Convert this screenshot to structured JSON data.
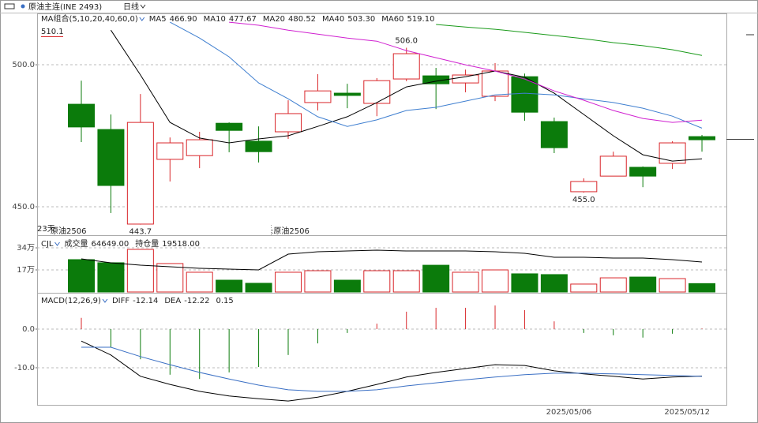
{
  "header": {
    "symbol": "原油主连(INE 2493)",
    "period": "日线"
  },
  "chart_data": [
    {
      "type": "candlestick",
      "legend_title": "MA组合(5,10,20,40,60,0)",
      "categories": [
        null,
        null,
        null,
        null,
        null,
        null,
        null,
        null,
        null,
        null,
        null,
        null,
        null,
        null,
        null,
        null,
        null,
        "2025/05/06",
        null,
        null,
        null,
        "2025/05/12"
      ],
      "open": [
        486.1,
        477.2,
        443.9,
        466.7,
        468,
        479.4,
        473.1,
        476.4,
        486.7,
        490,
        486.4,
        495,
        496.1,
        493.6,
        488.9,
        495.8,
        480,
        455.3,
        460.8,
        463.9,
        465.3,
        474.7
      ],
      "high": [
        494.4,
        482.5,
        489.7,
        474.4,
        476.4,
        479.7,
        478.3,
        487.5,
        496.7,
        493.3,
        495.3,
        506,
        498.9,
        498.3,
        500.6,
        496.9,
        481.4,
        460,
        469.4,
        464.2,
        473.1,
        475.3
      ],
      "low": [
        472.8,
        447.8,
        443.7,
        458.9,
        463.6,
        469.2,
        465.6,
        473.9,
        483.9,
        484.7,
        481.9,
        494.2,
        484.4,
        490.3,
        487.2,
        480.3,
        468.9,
        455,
        460.8,
        456.9,
        463.3,
        469.4
      ],
      "close": [
        478.1,
        457.5,
        479.7,
        472.5,
        473.6,
        476.9,
        469.4,
        482.8,
        490.8,
        489.2,
        494.4,
        503.9,
        493.3,
        496.4,
        497.8,
        483.3,
        470.8,
        458.9,
        467.8,
        460.8,
        472.5,
        473.6
      ],
      "up_color": "#d9262a",
      "down_color": "#0b7b0b",
      "ylim": [
        440,
        517.8
      ],
      "yticks": [
        {
          "value": 450,
          "label": "450.0"
        },
        {
          "value": 500,
          "label": "500.0"
        }
      ],
      "grid": true,
      "series": [
        {
          "name": "MA5",
          "value_label": "466.90",
          "color": "#000000",
          "values": [
            null,
            512.2,
            496.4,
            479.7,
            474.2,
            472.5,
            473.9,
            475,
            478.3,
            481.7,
            486.7,
            492.2,
            494.2,
            495.8,
            497.8,
            495.6,
            490,
            482.5,
            475,
            468.3,
            466.1,
            466.9
          ]
        },
        {
          "name": "MA10",
          "value_label": "477.67",
          "color": "#3f7fd0",
          "values": [
            null,
            null,
            null,
            515,
            509.4,
            502.8,
            493.6,
            488,
            481.7,
            478.3,
            480.6,
            483.9,
            485,
            487.2,
            489.4,
            490,
            489.4,
            488,
            486.7,
            484.7,
            481.9,
            477.67
          ]
        },
        {
          "name": "MA20",
          "value_label": "480.52",
          "color": "#d020d0",
          "values": [
            null,
            null,
            null,
            null,
            null,
            515,
            513.9,
            512.2,
            510.8,
            509.4,
            508.3,
            505,
            502.5,
            500,
            497.8,
            495,
            490.8,
            487.5,
            483.9,
            481.1,
            479.7,
            480.52
          ]
        },
        {
          "name": "MA40",
          "value_label": "503.30",
          "color": "#1a9a1a",
          "values": [
            null,
            null,
            null,
            null,
            null,
            null,
            null,
            null,
            null,
            null,
            null,
            null,
            514.2,
            513.3,
            512.5,
            511.4,
            510.3,
            509.2,
            507.8,
            506.7,
            505.3,
            503.3
          ]
        },
        {
          "name": "MA60",
          "value_label": "519.10",
          "color": "#888888"
        }
      ],
      "annotations": [
        {
          "text": "510.1"
        },
        {
          "text": "506.0"
        },
        {
          "text": "443.7"
        },
        {
          "text": "455.0"
        },
        {
          "text": "23天"
        },
        {
          "text": "原油2506"
        },
        {
          "text": ":原油2506"
        }
      ]
    },
    {
      "type": "volume",
      "legend_title": "CJL",
      "ylim": [
        0,
        40.7
      ],
      "yticks": [
        {
          "value": 17,
          "label": "17万"
        },
        {
          "value": 34,
          "label": "34万"
        }
      ],
      "grid": true,
      "y2lim": [
        0,
        34413
      ],
      "series": [
        {
          "name": "成交量",
          "value_label": "64649.00",
          "values": [
            24.9,
            22.5,
            32.8,
            21.9,
            15.2,
            9.1,
            6.7,
            15.2,
            16.4,
            9.1,
            16.4,
            16.4,
            20.6,
            15.2,
            17,
            14,
            13.4,
            6.1,
            10.9,
            11.5,
            10.3,
            6.4649
          ]
        },
        {
          "name": "持仓量",
          "value_label": "19518.00",
          "color": "#000000",
          "axis": "y2",
          "values": [
            21571,
            19003,
            17462,
            16435,
            15408,
            14894,
            14381,
            24653,
            26194,
            26707,
            27221,
            26707,
            26707,
            26707,
            26194,
            25166,
            22598,
            22598,
            22085,
            22085,
            21058,
            19518
          ]
        }
      ]
    },
    {
      "type": "macd",
      "legend_title": "MACD(12,26,9)",
      "ylim": [
        -19.39,
        8.57
      ],
      "yticks": [
        {
          "value": 0,
          "label": "0.0"
        },
        {
          "value": -10,
          "label": "-10.0"
        }
      ],
      "grid": true,
      "series": [
        {
          "name": "DIFF",
          "value_label": "-12.14",
          "color": "#000000",
          "values": [
            -3.1,
            -6.7,
            -12.2,
            -14.3,
            -16.1,
            -17.3,
            -18,
            -18.6,
            -17.6,
            -16.1,
            -14.3,
            -12.4,
            -11.2,
            -10.2,
            -9.2,
            -9.4,
            -10.8,
            -11.6,
            -12.2,
            -12.9,
            -12.4,
            -12.14
          ]
        },
        {
          "name": "DEA",
          "value_label": "-12.22",
          "color": "#3a6fc4",
          "values": [
            -4.7,
            -4.7,
            -7.1,
            -9.2,
            -11.2,
            -12.9,
            -14.5,
            -15.7,
            -16.1,
            -16.1,
            -15.7,
            -14.7,
            -13.9,
            -13.1,
            -12.4,
            -11.8,
            -11.4,
            -11.4,
            -11.6,
            -11.8,
            -12,
            -12.22
          ]
        }
      ],
      "histogram": {
        "value_label": "0.15",
        "values": [
          2.9,
          -4.7,
          -7.8,
          -11.8,
          -12.9,
          -11.2,
          -9.8,
          -6.7,
          -3.7,
          -1,
          1.4,
          4.5,
          5.5,
          5.5,
          6.1,
          4.9,
          2,
          -1,
          -1.6,
          -2.2,
          -1.2,
          0.15
        ]
      }
    }
  ]
}
